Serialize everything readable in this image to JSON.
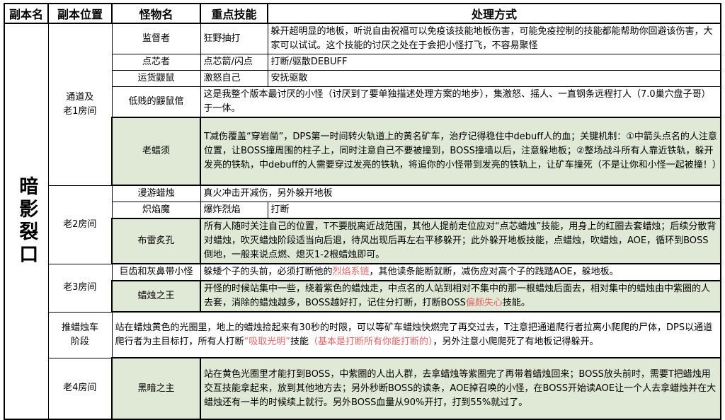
{
  "colors": {
    "green_row_bg": "#dfe9d6",
    "red_text": "#e06666",
    "border": "#000000",
    "page_bg": "#ffffff"
  },
  "table": {
    "headers": [
      "副本名",
      "副本位置",
      "怪物名",
      "重点技能",
      "处理方式"
    ],
    "dungeon_name": "暗影裂口",
    "locations": [
      "通道及\n老1房间",
      "老2房间",
      "老3房间",
      "推蜡烛车\n阶段",
      "老4房间"
    ],
    "rows": [
      {
        "monster": "监督者",
        "skill": "狂野抽打",
        "handling": [
          {
            "t": "躲开超明显的地板，听说自由祝福可以免疫该技能地板伤害，可能免疫控制的技能都能帮助你回避该伤害，大家可以试试。这个技能的讨厌之处在于会把小怪打飞，不容易聚怪"
          }
        ]
      },
      {
        "monster": "点芯者",
        "skill": "点芯箭/闪点",
        "handling": [
          {
            "t": "打断/驱散DEBUFF"
          }
        ]
      },
      {
        "monster": "运货鼹鼠",
        "skill": "激怒自己",
        "handling": [
          {
            "t": "安抚驱散"
          }
        ]
      },
      {
        "monster": "低贱的鼹鼠倌",
        "handling": [
          {
            "t": "这是我整个版本最讨厌的小怪（讨厌到了要单独描述处理方案的地步），集激怒、摇人、一直钢条远程打人（7.0巢穴盘子哥）于一体。"
          }
        ]
      },
      {
        "monster": "老蜡须",
        "green": true,
        "handling": [
          {
            "t": "T减伤覆盖“穿岩凿”，DPS第一时间转火轨道上的黄名矿车，治疗记得稳住中debuff人的血；关键机制：①中箭头点名的人注意位置，让BOSS撞周围的柱子上，同时注意自己不要被撞到，BOSS撞墙以后，注意躲地板；②整场战斗所有人靠近铁轨，躲开发亮的铁轨，中debuff的人需要穿过发亮的铁轨，将追你的小怪带到发亮的铁轨上，让矿车撞死（不是让你和小怪一起被撞！）"
          }
        ]
      },
      {
        "monster": "漫游蜡烛",
        "handling": [
          {
            "t": "真火冲击开减伤，另外躲开地板"
          }
        ]
      },
      {
        "monster": "炽焰魔",
        "skill": "爆炸烈焰",
        "handling": [
          {
            "t": "打断"
          }
        ]
      },
      {
        "monster": "布雷炙孔",
        "green": true,
        "handling": [
          {
            "t": "所有人随时关注自己的位置，T不要脱离近战范围，其他人提前走位应对“点芯蜡烛”技能，用身上的红圈去套蜡烛；后续分散背对蜡烛，吹灭蜡烛阶段适当向后退，待风出现后再左右平移躲开；此外躲开地板技能，点蜡烛，吹蜡烛，AOE，循环到BOSS倒地，一般来说点燃、熄灭1-2根蜡烛即可。"
          }
        ]
      },
      {
        "monster": "巨齿和灰鼻带小怪",
        "handling": [
          {
            "t": "躲矮个子的头前，必须打断他的"
          },
          {
            "t": "烈焰系链",
            "red": true
          },
          {
            "t": "，其他读条能断就断，减伤应对高个子的践踏AOE，躲地板。"
          }
        ]
      },
      {
        "monster": "蜡烛之王",
        "green": true,
        "handling": [
          {
            "t": "开怪的时候站集中一些，绕着紫色的蜡烛走，中点名的人站到相对不集中的那一根蜡烛后面去，相对集中的蜡烛由中紫圈的人去套，消除的蜡烛越多，BOSS越好打，记住分打断，打断BOSS"
          },
          {
            "t": "偏颇失心",
            "red": true
          },
          {
            "t": "技能。"
          }
        ]
      }
    ],
    "phase_row": {
      "location": "推蜡烛车\n阶段",
      "handling": [
        {
          "t": "站在蜡烛黄色的光圈里，地上的蜡烛捡起来有30秒的时限，可以等矿车蜡烛快燃完了再交过去，T注意把通道爬行者拉离小爬爬的尸体，DPS以通道爬行者为主目标打，所有人打断"
        },
        {
          "t": "“吸取光明”",
          "red": true
        },
        {
          "t": "技能"
        },
        {
          "t": "（基本是打断所有你能打断的）",
          "red": true
        },
        {
          "t": "，另外注意小爬爬死了有地板记得躲开。"
        }
      ]
    },
    "boss4_row": {
      "location": "老4房间",
      "monster": "黑暗之主",
      "green": true,
      "handling": [
        {
          "t": "站在黄色光圈里才能打到BOSS，中紫圈的人出人群，去拿蜡烛等紫圈完了再带着蜡烛回来；BOSS放头前时，需要T把蜡烛用交互技能拿起来，放到其他地方去；另外秒断BOSS的读条，AOE掉召唤的小怪，在BOSS开始读AOE让一个人去拿蜡烛并在大蜡烛还有一半的时候续上就行。另外BOSS血量从90%开打，打到55%就过了。"
        }
      ]
    }
  }
}
